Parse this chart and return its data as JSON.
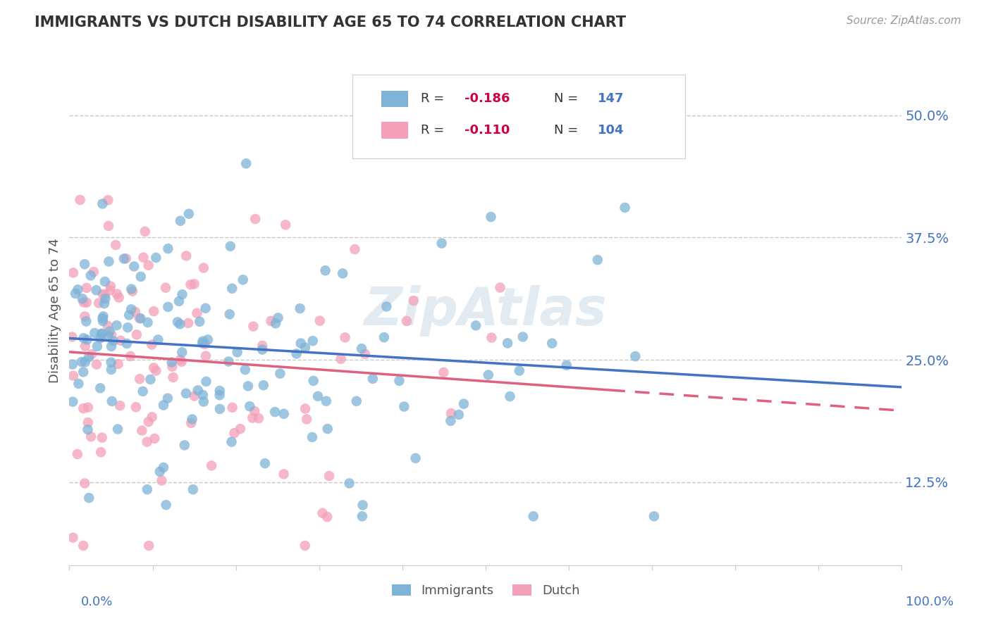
{
  "title": "IMMIGRANTS VS DUTCH DISABILITY AGE 65 TO 74 CORRELATION CHART",
  "source_text": "Source: ZipAtlas.com",
  "ylabel": "Disability Age 65 to 74",
  "yticks": [
    0.125,
    0.25,
    0.375,
    0.5
  ],
  "ytick_labels": [
    "12.5%",
    "25.0%",
    "37.5%",
    "50.0%"
  ],
  "xlim": [
    0.0,
    1.0
  ],
  "ylim": [
    0.04,
    0.56
  ],
  "immigrants_color": "#7eb3d8",
  "dutch_color": "#f4a0b8",
  "trendline_immigrants_color": "#4472c4",
  "trendline_dutch_color": "#e06080",
  "immigrants_R": -0.186,
  "immigrants_N": 147,
  "dutch_R": -0.11,
  "dutch_N": 104,
  "watermark": "ZipAtlas",
  "background_color": "#ffffff",
  "grid_color": "#c8c8c8",
  "title_color": "#333333",
  "axis_label_color": "#4472c4",
  "legend_r_color": "#cc0044",
  "legend_n_color": "#4472c4",
  "imm_trendline_start_y": 0.272,
  "imm_trendline_end_y": 0.222,
  "dutch_trendline_start_y": 0.258,
  "dutch_trendline_end_y": 0.198
}
